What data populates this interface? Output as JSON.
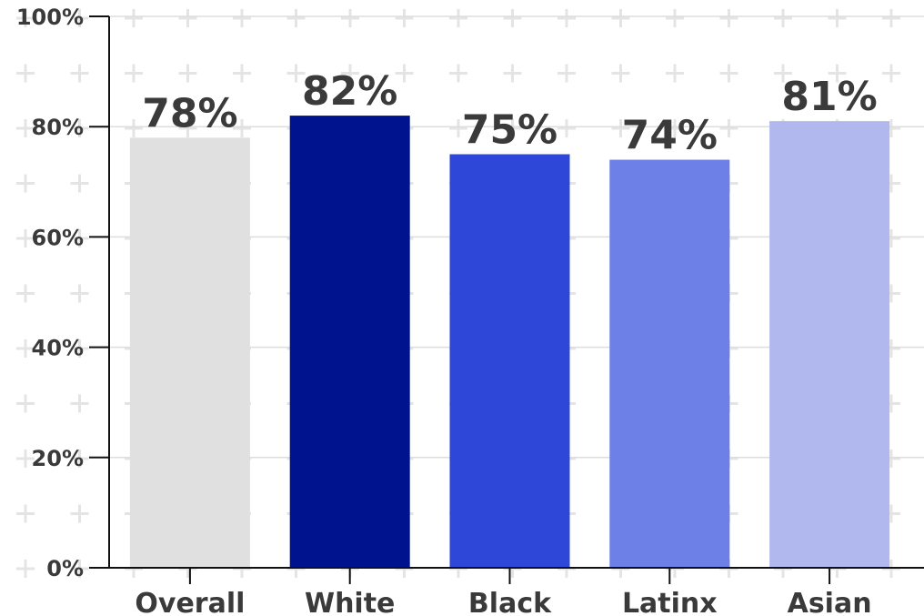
{
  "chart_data": {
    "type": "bar",
    "categories": [
      "Overall",
      "White",
      "Black",
      "Latinx",
      "Asian"
    ],
    "values": [
      78,
      82,
      75,
      74,
      81
    ],
    "data_labels": [
      "78%",
      "82%",
      "75%",
      "74%",
      "81%"
    ],
    "bar_colors": [
      "#e0e0e0",
      "#00138f",
      "#2f47d8",
      "#6c80e8",
      "#b0b8ee"
    ],
    "y_tick_labels": [
      "0%",
      "20%",
      "40%",
      "60%",
      "80%",
      "100%"
    ],
    "y_ticks": [
      0,
      20,
      40,
      60,
      80,
      100
    ],
    "ylim": [
      0,
      100
    ],
    "title": "",
    "xlabel": "",
    "ylabel": "",
    "grid": true,
    "legend": false
  },
  "colors": {
    "text": "#3a3a3a",
    "axis": "#111111",
    "grid": "#dddddd",
    "background_pattern": "#e4e4e4"
  }
}
